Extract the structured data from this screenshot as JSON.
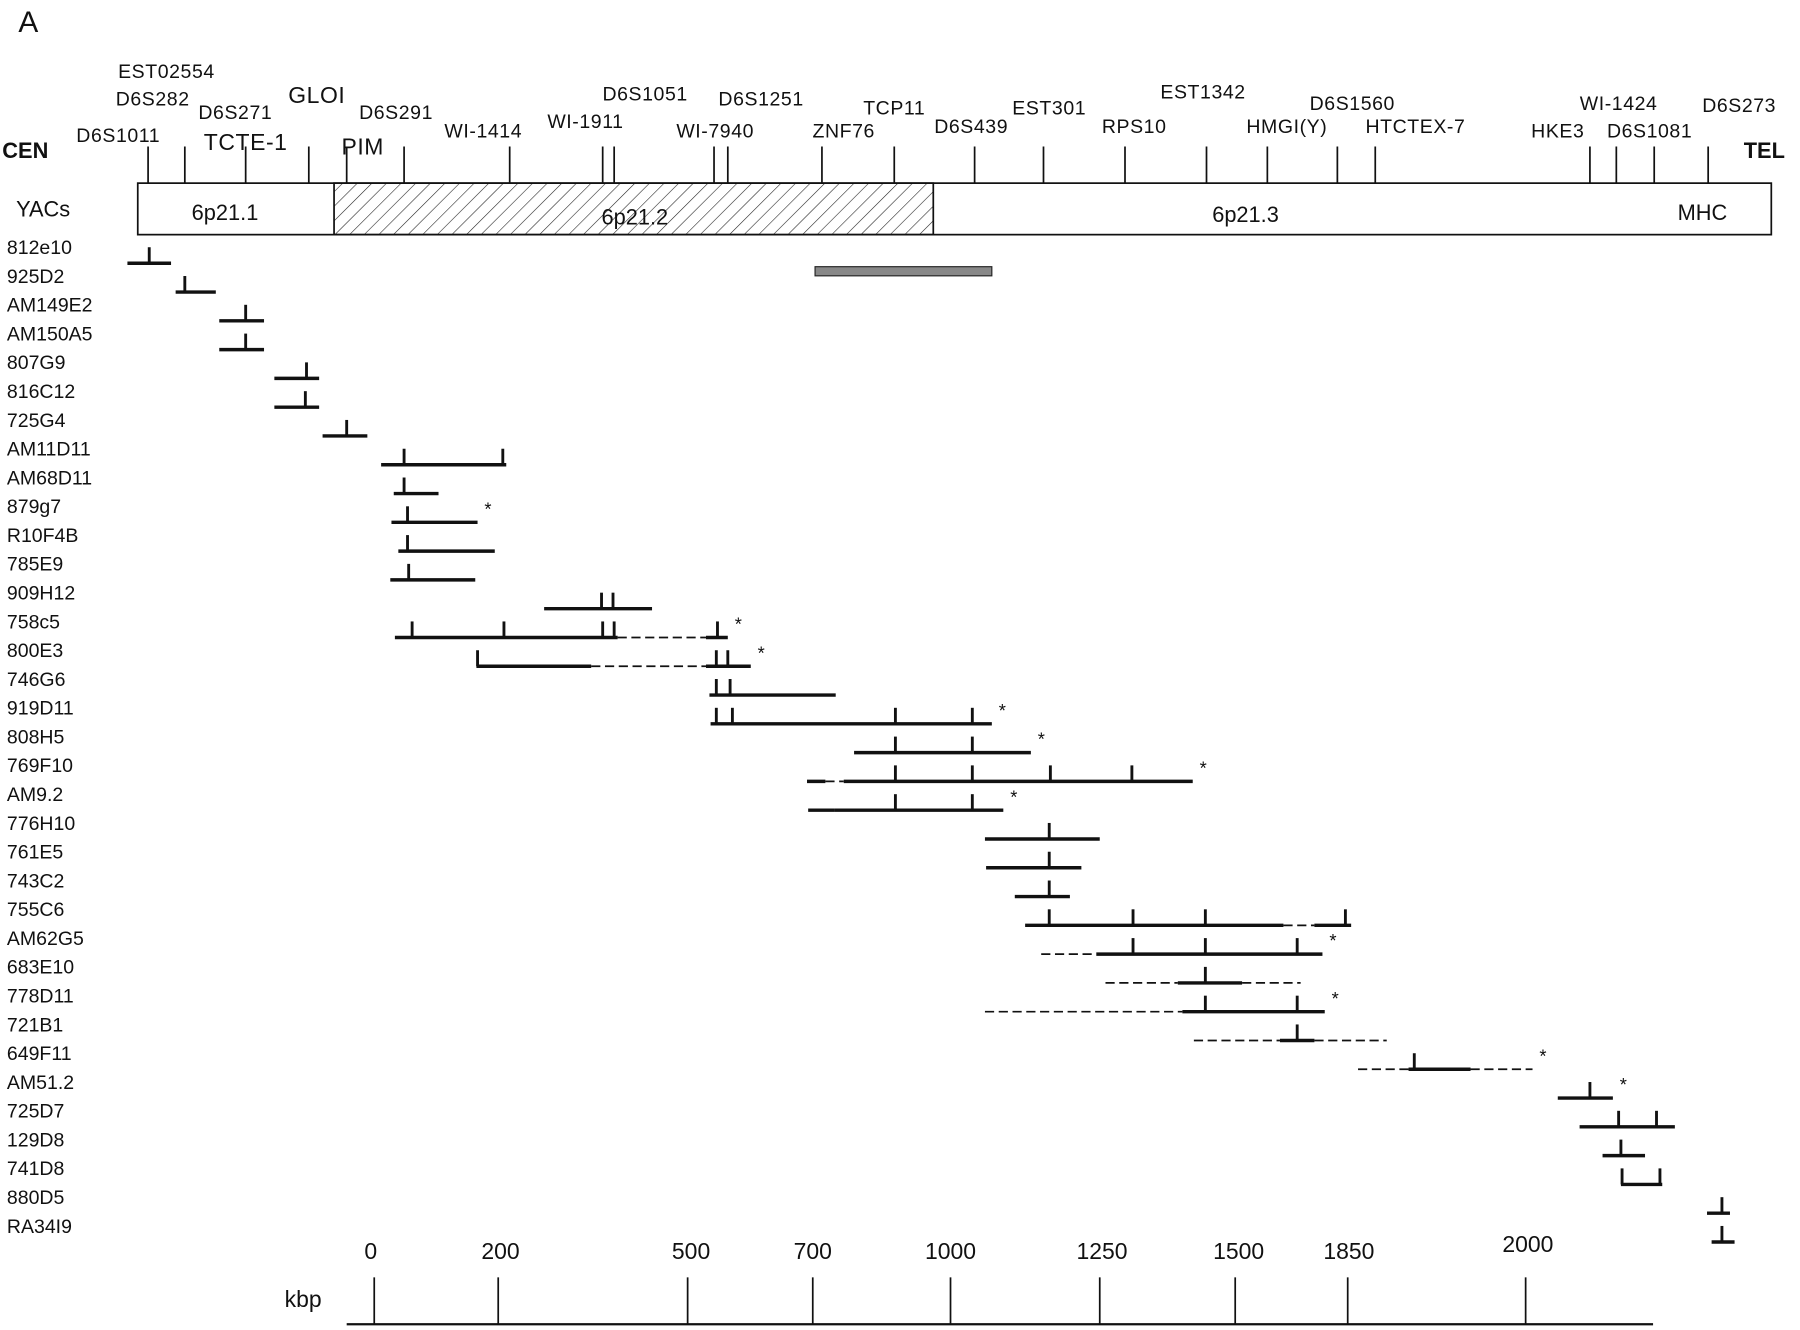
{
  "panel_label": "A",
  "cen": "CEN",
  "tel": "TEL",
  "markers": [
    "EST02554",
    "D6S282",
    "D6S1011",
    "D6S271",
    "TCTE-1",
    "GLOI",
    "D6S291",
    "PIM",
    "WI-1414",
    "WI-1911",
    "D6S1051",
    "D6S1251",
    "WI-7940",
    "ZNF76",
    "TCP11",
    "D6S439",
    "EST301",
    "RPS10",
    "EST1342",
    "D6S1560",
    "HMGI(Y)",
    "HTCTEX-7",
    "WI-1424",
    "D6S273",
    "HKE3",
    "D6S1081"
  ],
  "yac_header": "YACs",
  "bands": [
    "6p21.1",
    "6p21.2",
    "6p21.3"
  ],
  "mhc": "MHC",
  "yacs": [
    {
      "name": "812e10"
    },
    {
      "name": "925D2"
    },
    {
      "name": "AM149E2"
    },
    {
      "name": "AM150A5"
    },
    {
      "name": "807G9"
    },
    {
      "name": "816C12"
    },
    {
      "name": "725G4"
    },
    {
      "name": "AM11D11"
    },
    {
      "name": "AM68D11"
    },
    {
      "name": "879g7",
      "flag": "*"
    },
    {
      "name": "R10F4B"
    },
    {
      "name": "785E9"
    },
    {
      "name": "909H12"
    },
    {
      "name": "758c5",
      "flag": "*"
    },
    {
      "name": "800E3",
      "flag": "*"
    },
    {
      "name": "746G6"
    },
    {
      "name": "919D11",
      "flag": "*"
    },
    {
      "name": "808H5",
      "flag": "*"
    },
    {
      "name": "769F10",
      "flag": "*"
    },
    {
      "name": "AM9.2",
      "flag": "*"
    },
    {
      "name": "776H10"
    },
    {
      "name": "761E5"
    },
    {
      "name": "743C2"
    },
    {
      "name": "755C6"
    },
    {
      "name": "AM62G5",
      "flag": "*"
    },
    {
      "name": "683E10"
    },
    {
      "name": "778D11",
      "flag": "*"
    },
    {
      "name": "721B1"
    },
    {
      "name": "649F11",
      "flag": "*"
    },
    {
      "name": "AM51.2",
      "flag": "*"
    },
    {
      "name": "725D7"
    },
    {
      "name": "129D8"
    },
    {
      "name": "741D8"
    },
    {
      "name": "880D5"
    },
    {
      "name": "RA34I9"
    }
  ],
  "scale": {
    "unit": "kbp",
    "labels": [
      0,
      200,
      500,
      700,
      1000,
      1250,
      1500,
      1850,
      2000
    ]
  }
}
